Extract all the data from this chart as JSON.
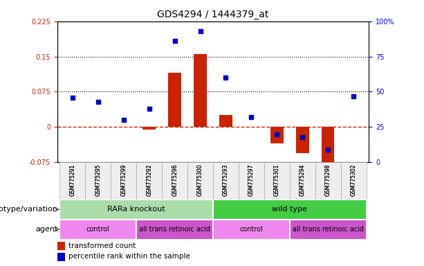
{
  "title": "GDS4294 / 1444379_at",
  "samples": [
    "GSM775291",
    "GSM775295",
    "GSM775299",
    "GSM775292",
    "GSM775296",
    "GSM775300",
    "GSM775293",
    "GSM775297",
    "GSM775301",
    "GSM775294",
    "GSM775298",
    "GSM775302"
  ],
  "transformed_count": [
    0.0,
    0.0,
    0.0,
    -0.005,
    0.115,
    0.155,
    0.025,
    0.0,
    -0.035,
    -0.055,
    -0.09,
    0.0
  ],
  "percentile_rank": [
    0.46,
    0.43,
    0.3,
    0.38,
    0.86,
    0.93,
    0.6,
    0.32,
    0.2,
    0.18,
    0.09,
    0.47
  ],
  "ylim_left": [
    -0.075,
    0.225
  ],
  "ylim_right": [
    0,
    1.0
  ],
  "yticks_left": [
    -0.075,
    0.0,
    0.075,
    0.15,
    0.225
  ],
  "yticks_right": [
    0.0,
    0.25,
    0.5,
    0.75,
    1.0
  ],
  "ytick_labels_left": [
    "-0.075",
    "0",
    "0.075",
    "0.15",
    "0.225"
  ],
  "ytick_labels_right": [
    "0",
    "25",
    "50",
    "75",
    "100%"
  ],
  "hlines": [
    0.075,
    0.15
  ],
  "bar_color": "#cc2200",
  "dot_color": "#0000cc",
  "zero_line_color": "#cc2200",
  "zero_line_style": "--",
  "hline_style": ":",
  "hline_color": "black",
  "genotype_groups": [
    {
      "label": "RARa knockout",
      "start": 0,
      "end": 6,
      "color": "#aaddaa"
    },
    {
      "label": "wild type",
      "start": 6,
      "end": 12,
      "color": "#44cc44"
    }
  ],
  "agent_groups": [
    {
      "label": "control",
      "start": 0,
      "end": 3,
      "color": "#ee88ee"
    },
    {
      "label": "all trans retinoic acid",
      "start": 3,
      "end": 6,
      "color": "#cc55cc"
    },
    {
      "label": "control",
      "start": 6,
      "end": 9,
      "color": "#ee88ee"
    },
    {
      "label": "all trans retinoic acid",
      "start": 9,
      "end": 12,
      "color": "#cc55cc"
    }
  ],
  "legend_bar_label": "transformed count",
  "legend_dot_label": "percentile rank within the sample",
  "label_genotype": "genotype/variation",
  "label_agent": "agent",
  "dot_size": 25,
  "bar_width": 0.5,
  "tick_fontsize": 7,
  "sample_fontsize": 5.5,
  "label_fontsize": 8,
  "title_fontsize": 10
}
